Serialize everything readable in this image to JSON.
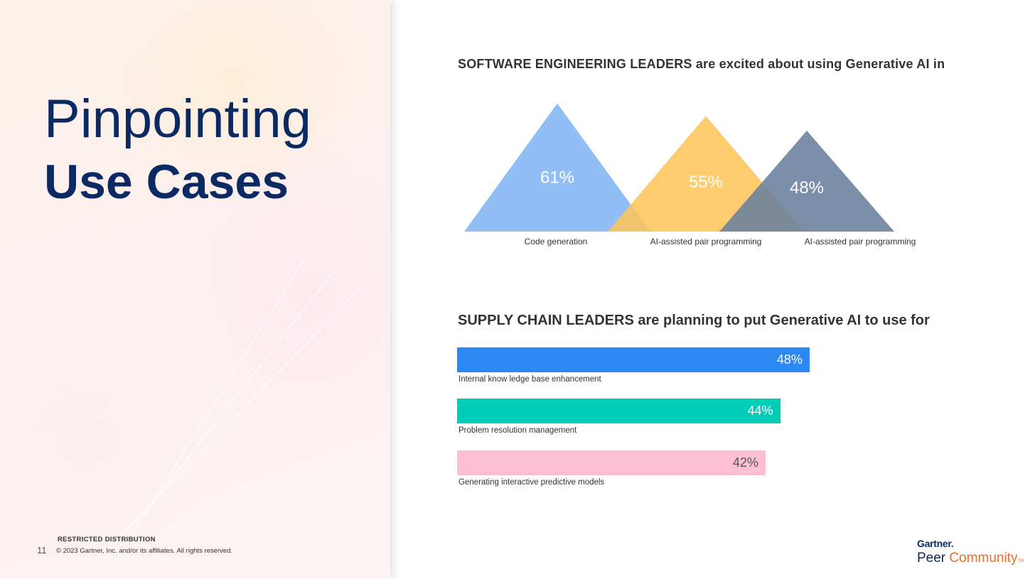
{
  "slide": {
    "title_line1": "Pinpointing",
    "title_line2": "Use Cases",
    "page_number": "11",
    "restricted": "RESTRICTED DISTRIBUTION",
    "copyright": "© 2023 Gartner, Inc. and/or its affiliates. All rights reserved."
  },
  "logo": {
    "gartner": "Gartner.",
    "peer": "Peer",
    "community": "Community",
    "tm": "TM"
  },
  "sections": {
    "software": {
      "title": "SOFTWARE ENGINEERING LEADERS are excited about using Generative AI in"
    },
    "supply": {
      "title": "SUPPLY CHAIN LEADERS are planning to put Generative AI to use for"
    }
  },
  "colors": {
    "navy": "#0b2a63",
    "tri_blue": "#7fb3f5",
    "tri_yellow": "#fcc55b",
    "tri_slate": "#6a809c",
    "bar_blue": "#2c88f3",
    "bar_teal": "#00cdb8",
    "bar_pink": "#fdbfd4",
    "orange": "#f26a21"
  },
  "chart_data": [
    {
      "type": "bar",
      "shape": "triangle",
      "title": "SOFTWARE ENGINEERING LEADERS are excited about using Generative AI in",
      "categories": [
        "Code generation",
        "AI-assisted pair programming",
        "AI-assisted pair programming"
      ],
      "values": [
        61,
        55,
        48
      ],
      "labels": [
        "61%",
        "55%",
        "48%"
      ],
      "colors": [
        "#7fb3f5",
        "#fcc55b",
        "#6a809c"
      ],
      "ylim": [
        0,
        100
      ]
    },
    {
      "type": "bar",
      "orientation": "horizontal",
      "title": "SUPPLY CHAIN LEADERS are planning to put Generative AI to use for",
      "categories": [
        "Internal know ledge base enhancement",
        "Problem resolution management",
        "Generating interactive predictive models"
      ],
      "values": [
        48,
        44,
        42
      ],
      "labels": [
        "48%",
        "44%",
        "42%"
      ],
      "colors": [
        "#2c88f3",
        "#00cdb8",
        "#fdbfd4"
      ],
      "label_colors": [
        "#ffffff",
        "#ffffff",
        "#555555"
      ],
      "xlim": [
        0,
        100
      ]
    }
  ]
}
